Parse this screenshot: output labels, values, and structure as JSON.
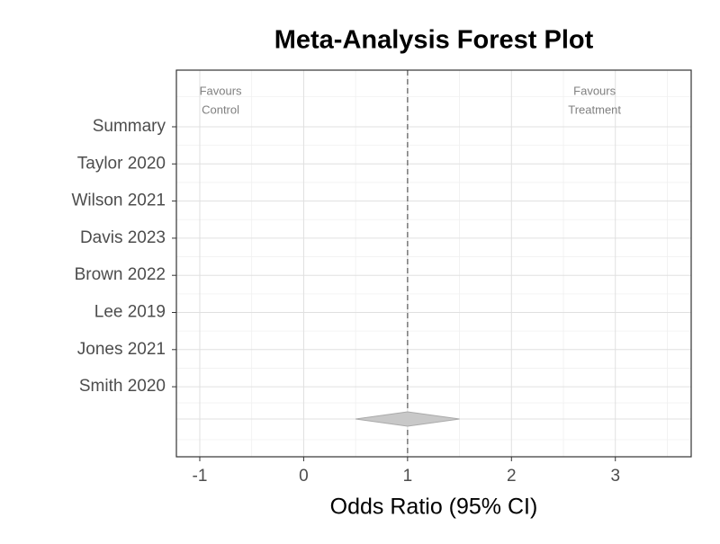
{
  "chart_data": {
    "type": "forest",
    "title": "Meta-Analysis Forest Plot",
    "x_label": "Odds Ratio (95% CI)",
    "categories": [
      "Summary",
      "Taylor 2020",
      "Wilson 2021",
      "Davis 2023",
      "Brown 2022",
      "Lee 2019",
      "Jones 2021",
      "Smith 2020"
    ],
    "summary": {
      "estimate": 1,
      "lower": 0.5,
      "upper": 1.5,
      "color": "#c8c8c8"
    },
    "reference_line": 1,
    "xlim": [
      -1.225,
      3.73
    ],
    "xticks": [
      -1,
      0,
      1,
      2,
      3
    ],
    "grid": true,
    "annotations": [
      {
        "lines": [
          "Favours",
          "Control"
        ],
        "x": -0.8
      },
      {
        "lines": [
          "Favours",
          "Treatment"
        ],
        "x": 2.8
      }
    ]
  }
}
